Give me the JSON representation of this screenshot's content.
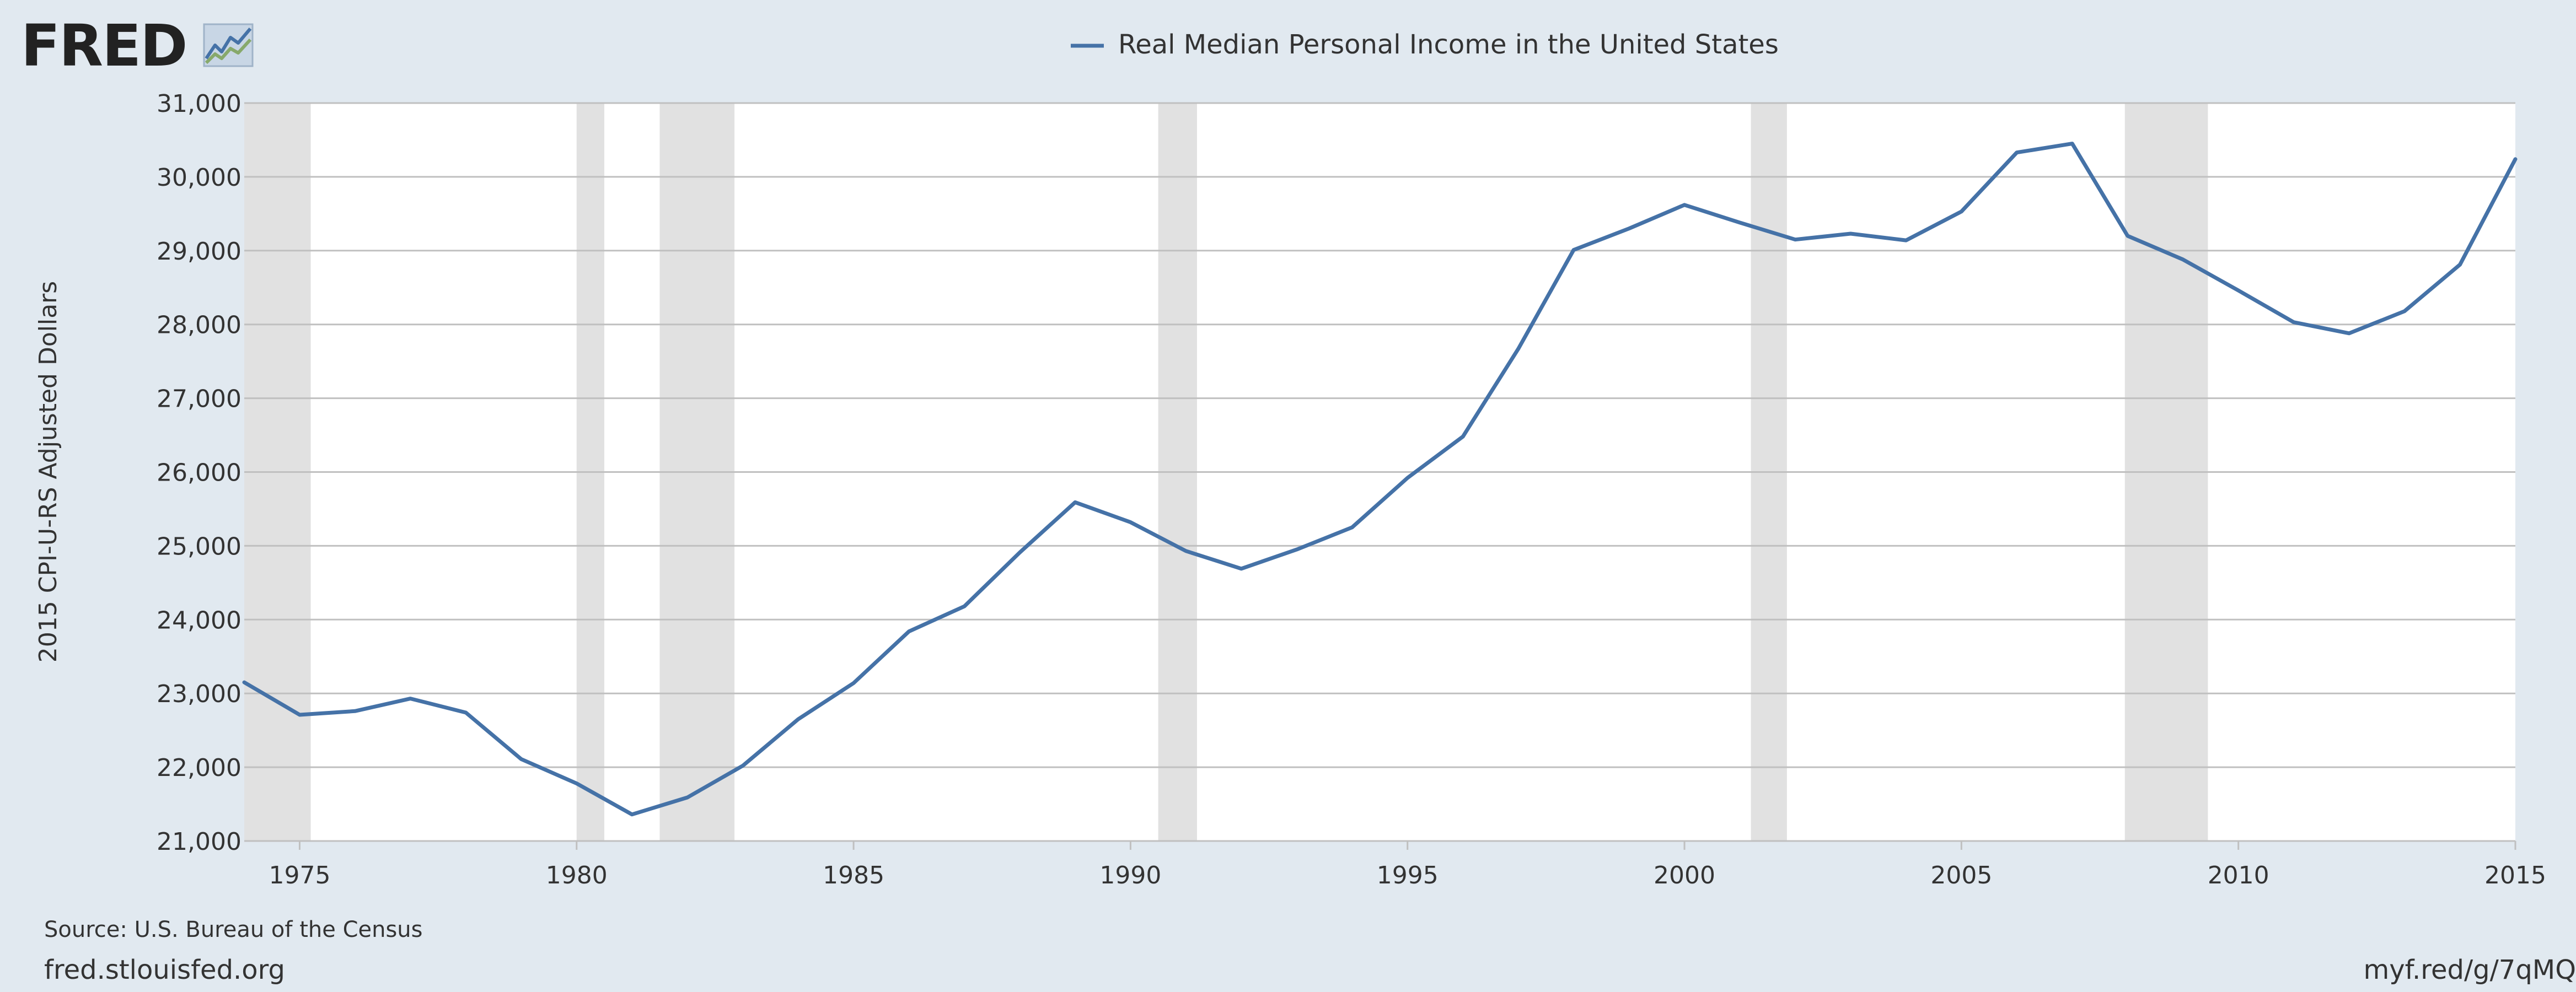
{
  "logo": {
    "text": "FRED",
    "icon": "fred-chart-line-icon",
    "icon_colors": [
      "#4572a7",
      "#87a96b",
      "#c8d6e5"
    ]
  },
  "footer": {
    "source": "Source: U.S. Bureau of the Census",
    "site": "fred.stlouisfed.org",
    "short_url": "myf.red/g/7qMQ"
  },
  "colors": {
    "background": "#e1e9f0",
    "plot_background": "#ffffff",
    "series_line": "#4572a7",
    "recession_band": "#e1e1e1",
    "grid": "#c0c0c0",
    "text": "#333333"
  },
  "chart_data": {
    "type": "line",
    "title": "",
    "ylabel": "2015 CPI-U-RS Adjusted Dollars",
    "xlabel": "",
    "legend_position": "top-center",
    "grid": true,
    "xlim": [
      1974,
      2015
    ],
    "ylim": [
      21000,
      31000
    ],
    "x_ticks": [
      1975,
      1980,
      1985,
      1990,
      1995,
      2000,
      2005,
      2010,
      2015
    ],
    "y_ticks": [
      21000,
      22000,
      23000,
      24000,
      25000,
      26000,
      27000,
      28000,
      29000,
      30000,
      31000
    ],
    "y_tick_labels": [
      "21,000",
      "22,000",
      "23,000",
      "24,000",
      "25,000",
      "26,000",
      "27,000",
      "28,000",
      "29,000",
      "30,000",
      "31,000"
    ],
    "recessions": [
      [
        1974,
        1975.2
      ],
      [
        1980.0,
        1980.5
      ],
      [
        1981.5,
        1982.85
      ],
      [
        1990.5,
        1991.2
      ],
      [
        2001.2,
        2001.85
      ],
      [
        2007.95,
        2009.45
      ]
    ],
    "series": [
      {
        "name": "Real Median Personal Income in the United States",
        "x": [
          1974,
          1975,
          1976,
          1977,
          1978,
          1979,
          1980,
          1981,
          1982,
          1983,
          1984,
          1985,
          1986,
          1987,
          1988,
          1989,
          1990,
          1991,
          1992,
          1993,
          1994,
          1995,
          1996,
          1997,
          1998,
          1999,
          2000,
          2001,
          2002,
          2003,
          2004,
          2005,
          2006,
          2007,
          2008,
          2009,
          2010,
          2011,
          2012,
          2013,
          2014,
          2015
        ],
        "values": [
          23150,
          22710,
          22760,
          22930,
          22740,
          22110,
          21780,
          21360,
          21590,
          22020,
          22650,
          23140,
          23840,
          24180,
          24910,
          25590,
          25320,
          24930,
          24690,
          24950,
          25250,
          25920,
          26480,
          27670,
          29010,
          29300,
          29620,
          29380,
          29150,
          29230,
          29140,
          29530,
          30330,
          30450,
          29200,
          28880,
          28460,
          28030,
          27880,
          28180,
          28810,
          30240
        ]
      }
    ]
  }
}
